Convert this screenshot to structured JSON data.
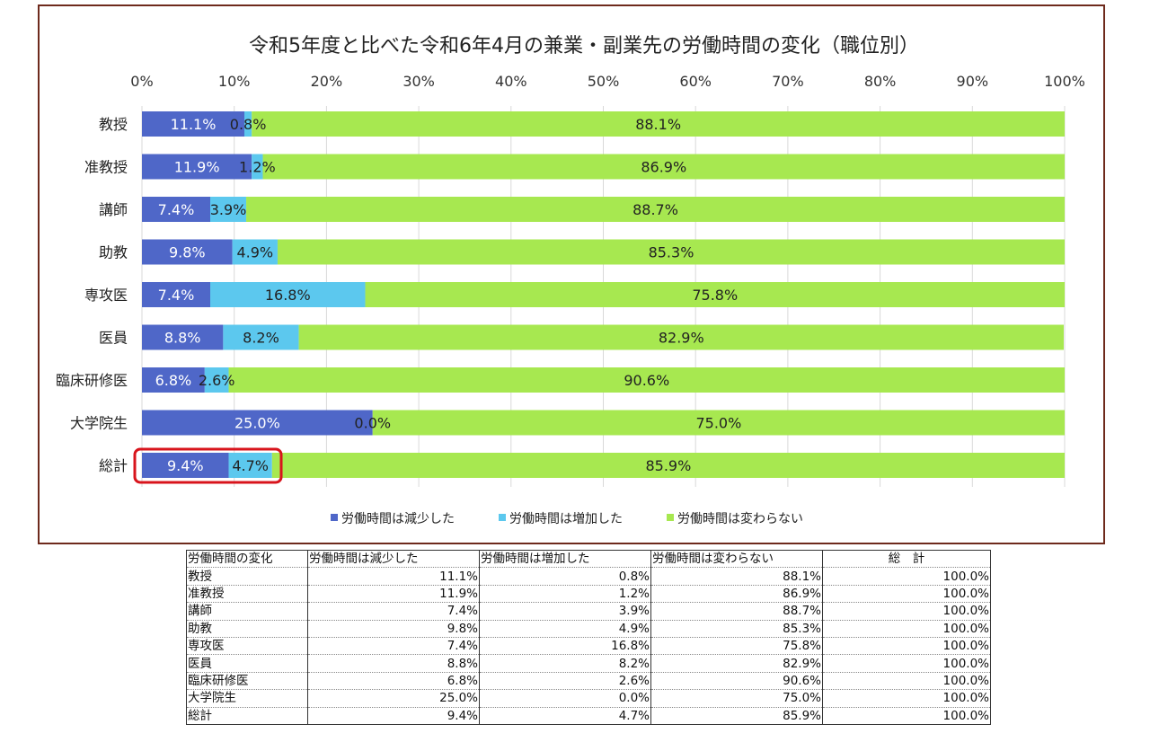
{
  "chart_data": {
    "type": "bar",
    "orientation": "horizontal-stacked-100",
    "title": "令和5年度と比べた令和6年4月の兼業・副業先の労働時間の変化（職位別）",
    "categories": [
      "教授",
      "准教授",
      "講師",
      "助教",
      "専攻医",
      "医員",
      "臨床研修医",
      "大学院生",
      "総計"
    ],
    "series": [
      {
        "name": "労働時間は減少した",
        "color": "#4f67c8",
        "values": [
          11.1,
          11.9,
          7.4,
          9.8,
          7.4,
          8.8,
          6.8,
          25.0,
          9.4
        ]
      },
      {
        "name": "労働時間は増加した",
        "color": "#5cc8ee",
        "values": [
          0.8,
          1.2,
          3.9,
          4.9,
          16.8,
          8.2,
          2.6,
          0.0,
          4.7
        ]
      },
      {
        "name": "労働時間は変わらない",
        "color": "#a7e850",
        "values": [
          88.1,
          86.9,
          88.7,
          85.3,
          75.8,
          82.9,
          90.6,
          75.0,
          85.9
        ]
      }
    ],
    "xlim": [
      0,
      100
    ],
    "xticks": [
      "0%",
      "10%",
      "20%",
      "30%",
      "40%",
      "50%",
      "60%",
      "70%",
      "80%",
      "90%",
      "100%"
    ],
    "grid": true,
    "legend": "bottom",
    "highlight": "総計 (減少 9.4% / 増加 4.7%)"
  },
  "table": {
    "headers": [
      "労働時間の変化",
      "労働時間は減少した",
      "労働時間は増加した",
      "労働時間は変わらない",
      "総　計"
    ],
    "rows": [
      [
        "教授",
        "11.1%",
        "0.8%",
        "88.1%",
        "100.0%"
      ],
      [
        "准教授",
        "11.9%",
        "1.2%",
        "86.9%",
        "100.0%"
      ],
      [
        "講師",
        "7.4%",
        "3.9%",
        "88.7%",
        "100.0%"
      ],
      [
        "助教",
        "9.8%",
        "4.9%",
        "85.3%",
        "100.0%"
      ],
      [
        "専攻医",
        "7.4%",
        "16.8%",
        "75.8%",
        "100.0%"
      ],
      [
        "医員",
        "8.8%",
        "8.2%",
        "82.9%",
        "100.0%"
      ],
      [
        "臨床研修医",
        "6.8%",
        "2.6%",
        "90.6%",
        "100.0%"
      ],
      [
        "大学院生",
        "25.0%",
        "0.0%",
        "75.0%",
        "100.0%"
      ],
      [
        "総計",
        "9.4%",
        "4.7%",
        "85.9%",
        "100.0%"
      ]
    ]
  }
}
